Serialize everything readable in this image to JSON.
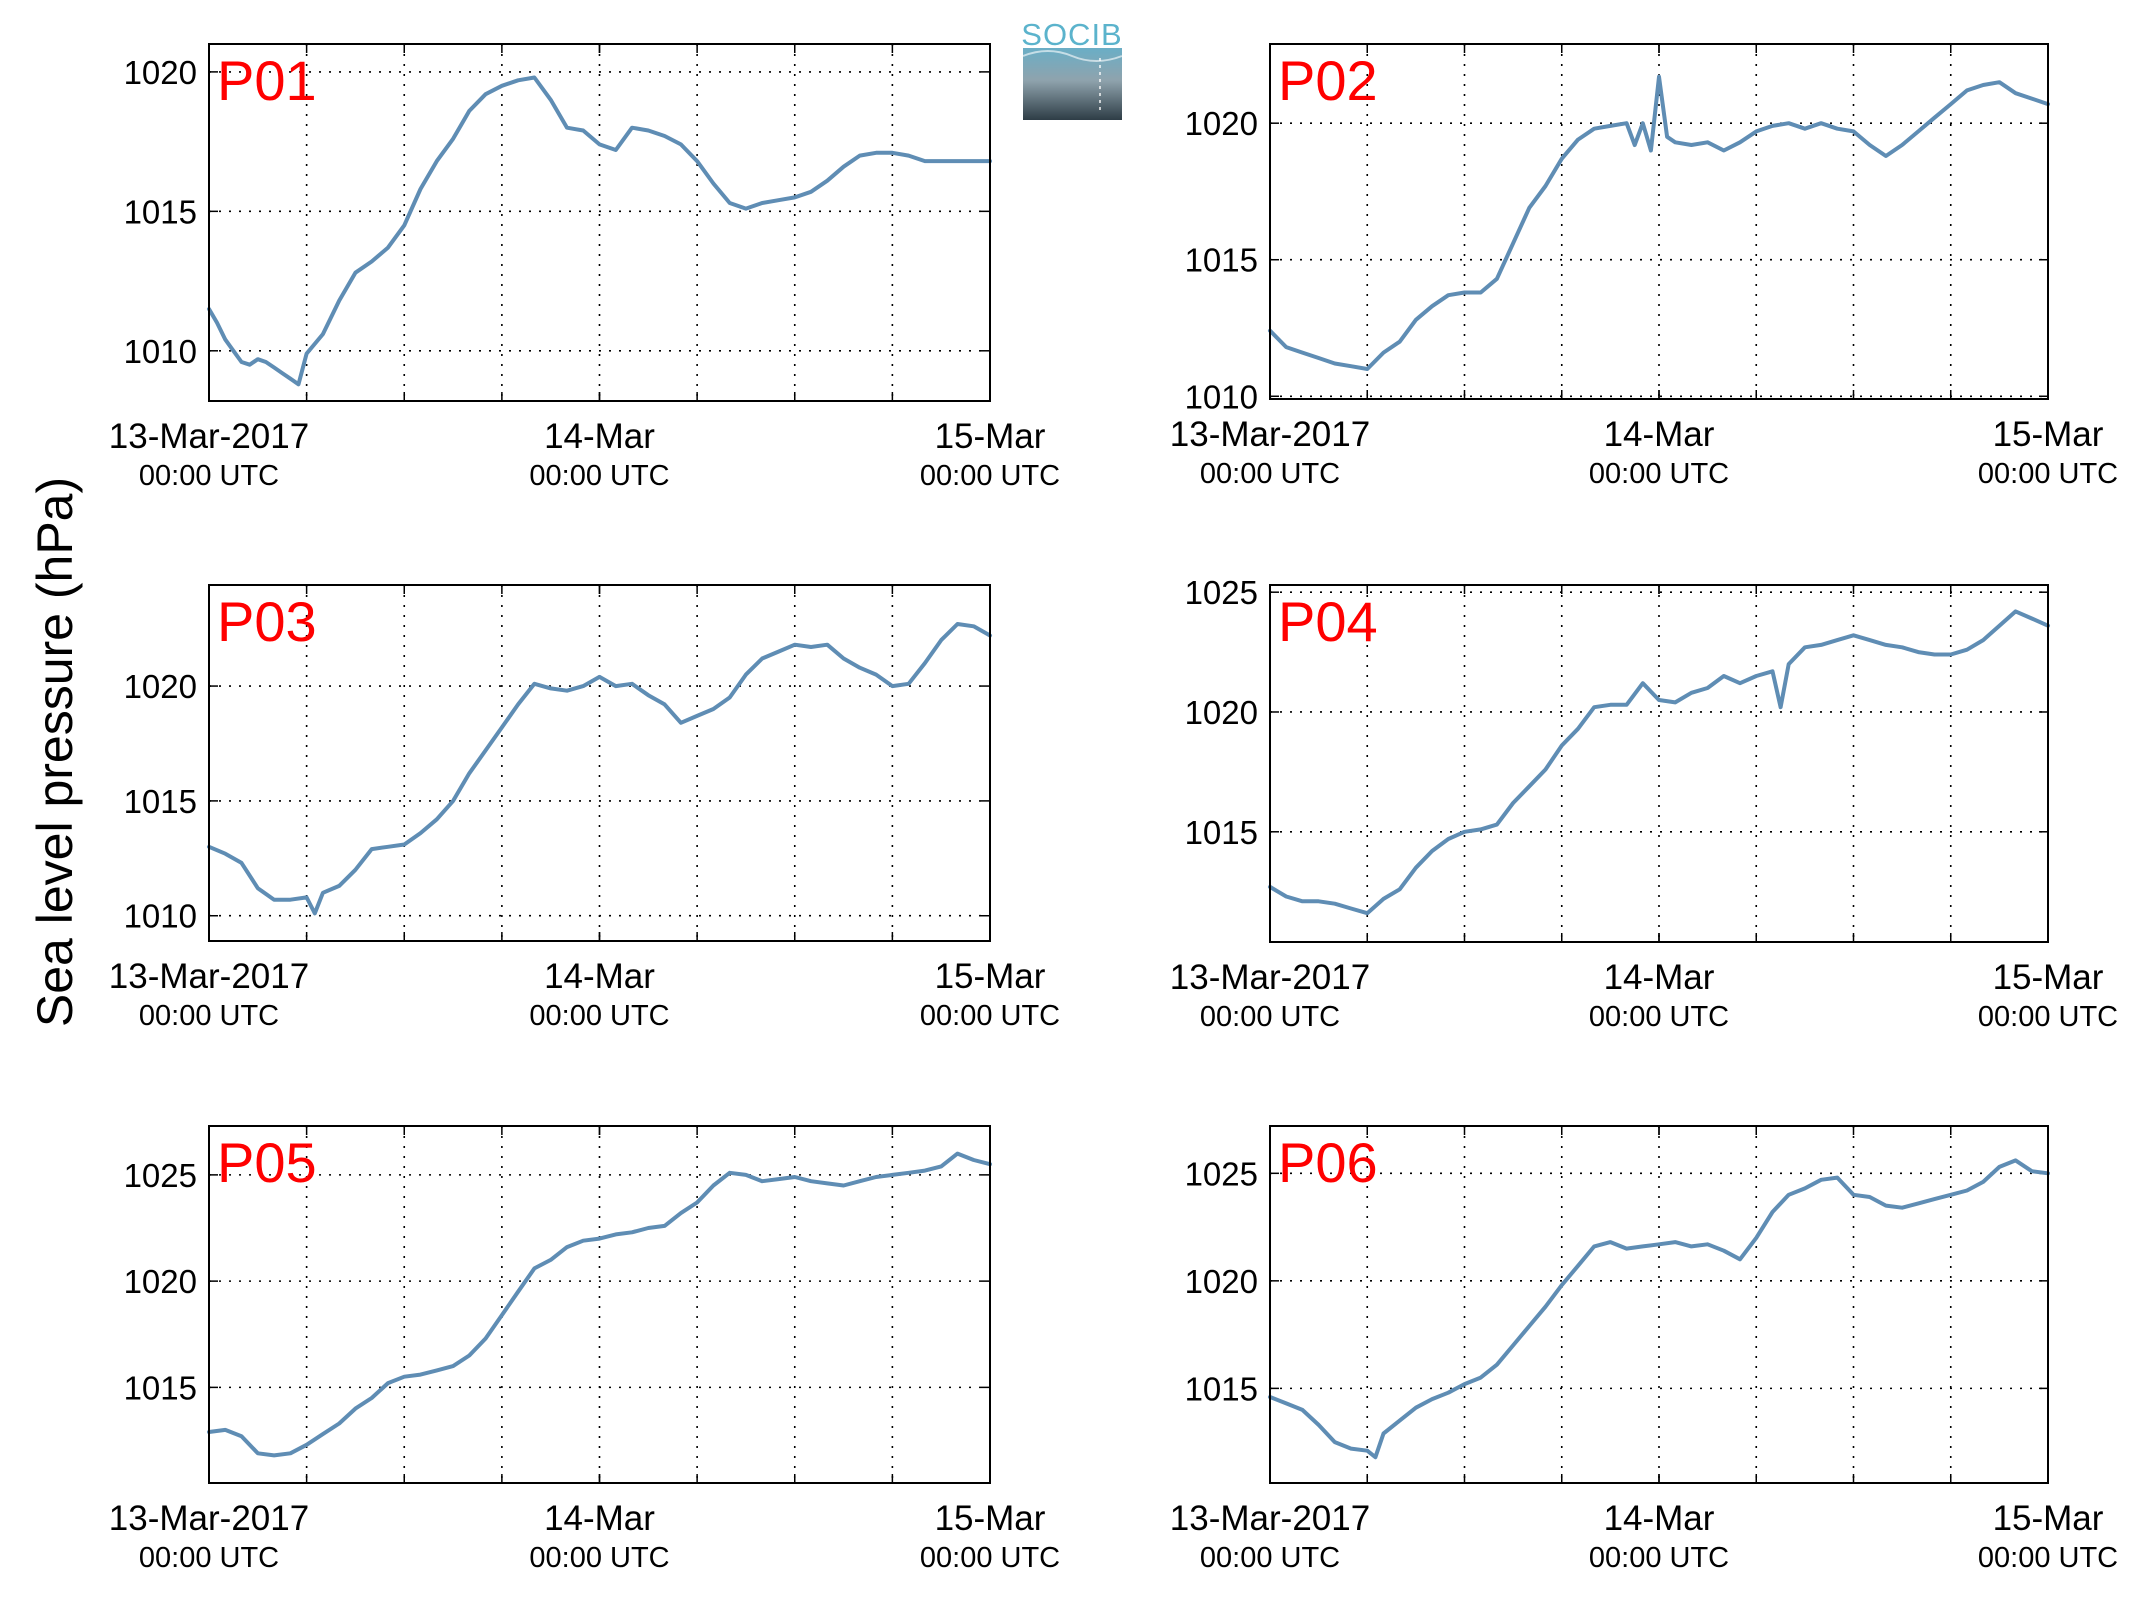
{
  "figure": {
    "ylabel": "Sea level pressure (hPa)",
    "logo_text": "SOCIB",
    "line_color": "#5f8db4",
    "panel_label_color": "#ff0000"
  },
  "chart_data": [
    {
      "type": "line",
      "title": "P01",
      "ylim": [
        1008.2,
        1021.0
      ],
      "yticks": [
        1010,
        1015,
        1020
      ],
      "x_range_hours": [
        0,
        48
      ],
      "x_ticks_major": [
        {
          "hour": 0,
          "date": "13-Mar-2017",
          "time": "00:00 UTC"
        },
        {
          "hour": 24,
          "date": "14-Mar",
          "time": "00:00 UTC"
        },
        {
          "hour": 48,
          "date": "15-Mar",
          "time": "00:00 UTC"
        }
      ],
      "x_grid_hours": [
        6,
        12,
        18,
        24,
        30,
        36,
        42
      ],
      "grid": true,
      "series": [
        {
          "x": [
            0,
            0.5,
            1,
            1.5,
            2,
            2.5,
            3,
            3.5,
            4,
            4.5,
            5,
            5.5,
            6,
            7,
            8,
            9,
            10,
            11,
            12,
            13,
            14,
            15,
            16,
            17,
            18,
            19,
            20,
            21,
            22,
            23,
            24,
            25,
            26,
            27,
            28,
            29,
            30,
            31,
            32,
            33,
            34,
            35,
            36,
            37,
            38,
            39,
            40,
            41,
            42,
            43,
            44,
            45,
            46,
            47,
            48
          ],
          "y": [
            1011.5,
            1011.0,
            1010.4,
            1010.0,
            1009.6,
            1009.5,
            1009.7,
            1009.6,
            1009.4,
            1009.2,
            1009.0,
            1008.8,
            1009.9,
            1010.6,
            1011.8,
            1012.8,
            1013.2,
            1013.7,
            1014.5,
            1015.8,
            1016.8,
            1017.6,
            1018.6,
            1019.2,
            1019.5,
            1019.7,
            1019.8,
            1019.0,
            1018.0,
            1017.9,
            1017.4,
            1017.2,
            1018.0,
            1017.9,
            1017.7,
            1017.4,
            1016.8,
            1016.0,
            1015.3,
            1015.1,
            1015.3,
            1015.4,
            1015.5,
            1015.7,
            1016.1,
            1016.6,
            1017.0,
            1017.1,
            1017.1,
            1017.0,
            1016.8,
            1016.8,
            1016.8,
            1016.8,
            1016.8
          ]
        }
      ]
    },
    {
      "type": "line",
      "title": "P02",
      "ylim": [
        1009.9,
        1022.9
      ],
      "yticks": [
        1010,
        1015,
        1020
      ],
      "x_range_hours": [
        0,
        48
      ],
      "x_ticks_major": [
        {
          "hour": 0,
          "date": "13-Mar-2017",
          "time": "00:00 UTC"
        },
        {
          "hour": 24,
          "date": "14-Mar",
          "time": "00:00 UTC"
        },
        {
          "hour": 48,
          "date": "15-Mar",
          "time": "00:00 UTC"
        }
      ],
      "x_grid_hours": [
        6,
        12,
        18,
        24,
        30,
        36,
        42
      ],
      "grid": true,
      "series": [
        {
          "x": [
            0,
            1,
            2,
            3,
            4,
            5,
            6,
            7,
            8,
            9,
            10,
            11,
            12,
            13,
            14,
            15,
            16,
            17,
            18,
            19,
            20,
            21,
            22,
            22.5,
            23,
            23.5,
            24,
            24.5,
            25,
            26,
            27,
            28,
            29,
            30,
            31,
            32,
            33,
            34,
            35,
            36,
            37,
            38,
            39,
            40,
            41,
            42,
            43,
            44,
            45,
            46,
            47,
            48
          ],
          "y": [
            1012.4,
            1011.8,
            1011.6,
            1011.4,
            1011.2,
            1011.1,
            1011.0,
            1011.6,
            1012.0,
            1012.8,
            1013.3,
            1013.7,
            1013.8,
            1013.8,
            1014.3,
            1015.6,
            1016.9,
            1017.7,
            1018.7,
            1019.4,
            1019.8,
            1019.9,
            1020.0,
            1019.2,
            1020.0,
            1019.0,
            1021.7,
            1019.5,
            1019.3,
            1019.2,
            1019.3,
            1019.0,
            1019.3,
            1019.7,
            1019.9,
            1020.0,
            1019.8,
            1020.0,
            1019.8,
            1019.7,
            1019.2,
            1018.8,
            1019.2,
            1019.7,
            1020.2,
            1020.7,
            1021.2,
            1021.4,
            1021.5,
            1021.1,
            1020.9,
            1020.7
          ]
        }
      ]
    },
    {
      "type": "line",
      "title": "P03",
      "ylim": [
        1008.9,
        1024.4
      ],
      "yticks": [
        1010,
        1015,
        1020
      ],
      "x_range_hours": [
        0,
        48
      ],
      "x_ticks_major": [
        {
          "hour": 0,
          "date": "13-Mar-2017",
          "time": "00:00 UTC"
        },
        {
          "hour": 24,
          "date": "14-Mar",
          "time": "00:00 UTC"
        },
        {
          "hour": 48,
          "date": "15-Mar",
          "time": "00:00 UTC"
        }
      ],
      "x_grid_hours": [
        6,
        12,
        18,
        24,
        30,
        36,
        42
      ],
      "grid": true,
      "series": [
        {
          "x": [
            0,
            1,
            2,
            3,
            4,
            5,
            6,
            6.5,
            7,
            8,
            9,
            10,
            11,
            12,
            13,
            14,
            15,
            16,
            17,
            18,
            19,
            20,
            21,
            22,
            23,
            24,
            25,
            26,
            27,
            28,
            29,
            30,
            31,
            32,
            33,
            34,
            35,
            36,
            37,
            38,
            39,
            40,
            41,
            42,
            43,
            44,
            45,
            46,
            47,
            48
          ],
          "y": [
            1013.0,
            1012.7,
            1012.3,
            1011.2,
            1010.7,
            1010.7,
            1010.8,
            1010.1,
            1011.0,
            1011.3,
            1012.0,
            1012.9,
            1013.0,
            1013.1,
            1013.6,
            1014.2,
            1015.0,
            1016.2,
            1017.2,
            1018.2,
            1019.2,
            1020.1,
            1019.9,
            1019.8,
            1020.0,
            1020.4,
            1020.0,
            1020.1,
            1019.6,
            1019.2,
            1018.4,
            1018.7,
            1019.0,
            1019.5,
            1020.5,
            1021.2,
            1021.5,
            1021.8,
            1021.7,
            1021.8,
            1021.2,
            1020.8,
            1020.5,
            1020.0,
            1020.1,
            1021.0,
            1022.0,
            1022.7,
            1022.6,
            1022.2
          ]
        }
      ]
    },
    {
      "type": "line",
      "title": "P04",
      "ylim": [
        1010.4,
        1025.3
      ],
      "yticks": [
        1015,
        1020,
        1025
      ],
      "x_range_hours": [
        0,
        48
      ],
      "x_ticks_major": [
        {
          "hour": 0,
          "date": "13-Mar-2017",
          "time": "00:00 UTC"
        },
        {
          "hour": 24,
          "date": "14-Mar",
          "time": "00:00 UTC"
        },
        {
          "hour": 48,
          "date": "15-Mar",
          "time": "00:00 UTC"
        }
      ],
      "x_grid_hours": [
        6,
        12,
        18,
        24,
        30,
        36,
        42
      ],
      "grid": true,
      "series": [
        {
          "x": [
            0,
            1,
            2,
            3,
            4,
            5,
            6,
            7,
            8,
            9,
            10,
            11,
            12,
            13,
            14,
            15,
            16,
            17,
            18,
            19,
            20,
            21,
            22,
            23,
            24,
            25,
            26,
            27,
            28,
            29,
            30,
            31,
            31.5,
            32,
            33,
            34,
            35,
            36,
            37,
            38,
            39,
            40,
            41,
            42,
            43,
            44,
            45,
            46,
            47,
            48
          ],
          "y": [
            1012.7,
            1012.3,
            1012.1,
            1012.1,
            1012.0,
            1011.8,
            1011.6,
            1012.2,
            1012.6,
            1013.5,
            1014.2,
            1014.7,
            1015.0,
            1015.1,
            1015.3,
            1016.2,
            1016.9,
            1017.6,
            1018.6,
            1019.3,
            1020.2,
            1020.3,
            1020.3,
            1021.2,
            1020.5,
            1020.4,
            1020.8,
            1021.0,
            1021.5,
            1021.2,
            1021.5,
            1021.7,
            1020.2,
            1022.0,
            1022.7,
            1022.8,
            1023.0,
            1023.2,
            1023.0,
            1022.8,
            1022.7,
            1022.5,
            1022.4,
            1022.4,
            1022.6,
            1023.0,
            1023.6,
            1024.2,
            1023.9,
            1023.6
          ]
        }
      ]
    },
    {
      "type": "line",
      "title": "P05",
      "ylim": [
        1010.5,
        1027.3
      ],
      "yticks": [
        1015,
        1020,
        1025
      ],
      "x_range_hours": [
        0,
        48
      ],
      "x_ticks_major": [
        {
          "hour": 0,
          "date": "13-Mar-2017",
          "time": "00:00 UTC"
        },
        {
          "hour": 24,
          "date": "14-Mar",
          "time": "00:00 UTC"
        },
        {
          "hour": 48,
          "date": "15-Mar",
          "time": "00:00 UTC"
        }
      ],
      "x_grid_hours": [
        6,
        12,
        18,
        24,
        30,
        36,
        42
      ],
      "grid": true,
      "series": [
        {
          "x": [
            0,
            1,
            2,
            3,
            4,
            5,
            6,
            7,
            8,
            9,
            10,
            11,
            12,
            13,
            14,
            15,
            16,
            17,
            18,
            19,
            20,
            21,
            22,
            23,
            24,
            25,
            26,
            27,
            28,
            29,
            30,
            31,
            32,
            33,
            34,
            35,
            36,
            37,
            38,
            39,
            40,
            41,
            42,
            43,
            44,
            45,
            46,
            47,
            48
          ],
          "y": [
            1012.9,
            1013.0,
            1012.7,
            1011.9,
            1011.8,
            1011.9,
            1012.3,
            1012.8,
            1013.3,
            1014.0,
            1014.5,
            1015.2,
            1015.5,
            1015.6,
            1015.8,
            1016.0,
            1016.5,
            1017.3,
            1018.4,
            1019.5,
            1020.6,
            1021.0,
            1021.6,
            1021.9,
            1022.0,
            1022.2,
            1022.3,
            1022.5,
            1022.6,
            1023.2,
            1023.7,
            1024.5,
            1025.1,
            1025.0,
            1024.7,
            1024.8,
            1024.9,
            1024.7,
            1024.6,
            1024.5,
            1024.7,
            1024.9,
            1025.0,
            1025.1,
            1025.2,
            1025.4,
            1026.0,
            1025.7,
            1025.5
          ]
        }
      ]
    },
    {
      "type": "line",
      "title": "P06",
      "ylim": [
        1010.6,
        1027.2
      ],
      "yticks": [
        1015,
        1020,
        1025
      ],
      "x_range_hours": [
        0,
        48
      ],
      "x_ticks_major": [
        {
          "hour": 0,
          "date": "13-Mar-2017",
          "time": "00:00 UTC"
        },
        {
          "hour": 24,
          "date": "14-Mar",
          "time": "00:00 UTC"
        },
        {
          "hour": 48,
          "date": "15-Mar",
          "time": "00:00 UTC"
        }
      ],
      "x_grid_hours": [
        6,
        12,
        18,
        24,
        30,
        36,
        42
      ],
      "grid": true,
      "series": [
        {
          "x": [
            0,
            1,
            2,
            3,
            4,
            5,
            6,
            6.5,
            7,
            8,
            9,
            10,
            11,
            12,
            13,
            14,
            15,
            16,
            17,
            18,
            19,
            20,
            21,
            22,
            23,
            24,
            25,
            26,
            27,
            28,
            29,
            30,
            31,
            32,
            33,
            34,
            35,
            36,
            37,
            38,
            39,
            40,
            41,
            42,
            43,
            44,
            45,
            46,
            47,
            48
          ],
          "y": [
            1014.6,
            1014.3,
            1014.0,
            1013.3,
            1012.5,
            1012.2,
            1012.1,
            1011.8,
            1012.9,
            1013.5,
            1014.1,
            1014.5,
            1014.8,
            1015.2,
            1015.5,
            1016.1,
            1017.0,
            1017.9,
            1018.8,
            1019.8,
            1020.7,
            1021.6,
            1021.8,
            1021.5,
            1021.6,
            1021.7,
            1021.8,
            1021.6,
            1021.7,
            1021.4,
            1021.0,
            1022.0,
            1023.2,
            1024.0,
            1024.3,
            1024.7,
            1024.8,
            1024.0,
            1023.9,
            1023.5,
            1023.4,
            1023.6,
            1023.8,
            1024.0,
            1024.2,
            1024.6,
            1025.3,
            1025.6,
            1025.1,
            1025.0
          ]
        }
      ]
    }
  ]
}
